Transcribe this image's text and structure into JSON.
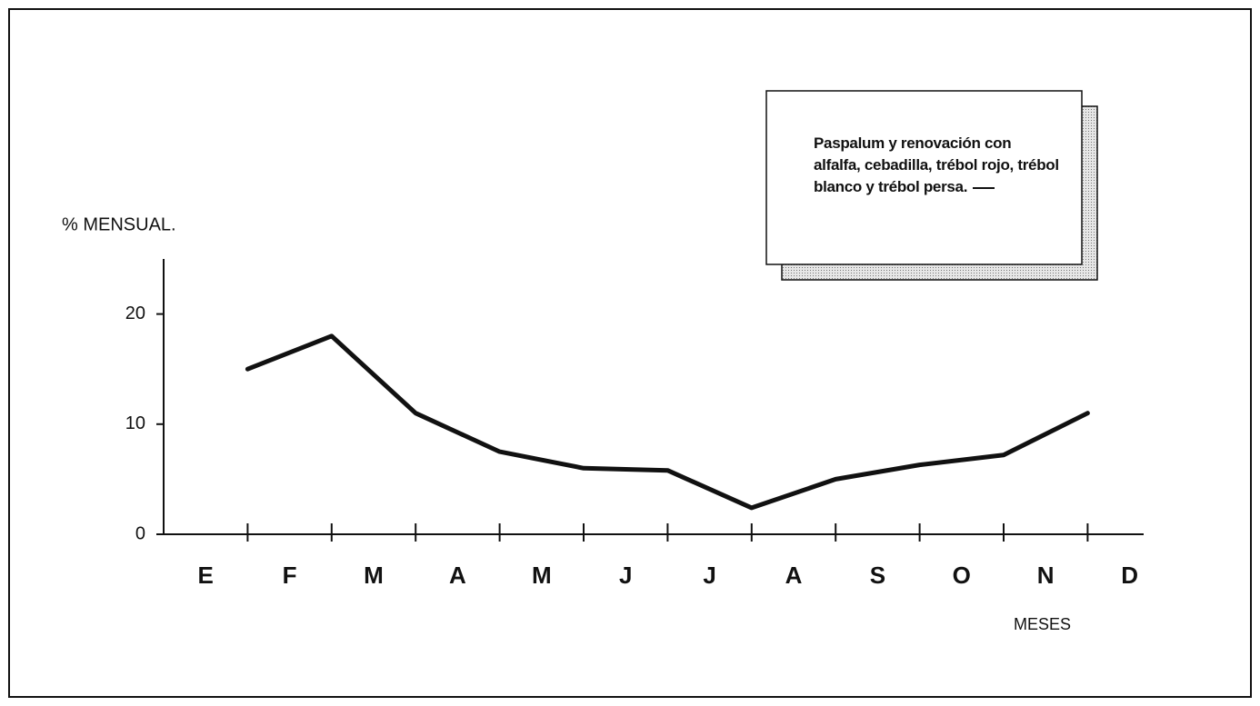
{
  "chart_data": {
    "type": "line",
    "y_label": "% MENSUAL.",
    "x_label": "MESES",
    "categories": [
      "E",
      "F",
      "M",
      "A",
      "M",
      "J",
      "J",
      "A",
      "S",
      "O",
      "N",
      "D"
    ],
    "series": [
      {
        "name": "Paspalum y renovación con alfalfa, cebadilla, trébol rojo, trébol blanco y trébol persa.",
        "color": "#111111",
        "values": [
          15,
          18,
          11,
          7.5,
          6,
          5.8,
          2.4,
          5,
          6.3,
          7.2,
          11,
          null
        ]
      }
    ],
    "ylim": [
      0,
      25
    ],
    "yticks": [
      0,
      10,
      20
    ]
  }
}
